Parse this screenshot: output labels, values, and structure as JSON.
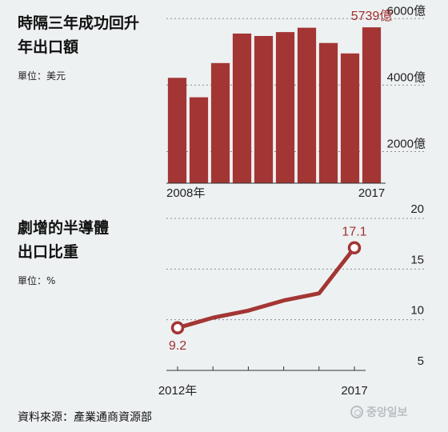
{
  "chart1": {
    "title_lines": [
      "時隔三年成功回升",
      "年出口額"
    ],
    "unit": "單位：美元"
  },
  "chart2": {
    "title_lines": [
      "劇增的半導體",
      "出口比重"
    ],
    "unit": "單位：%"
  },
  "source": "資料來源：產業通商資源部",
  "logo_text": "중앙일보",
  "colors": {
    "bar": "#a33634",
    "line": "#a33634",
    "background": "#eef1f2"
  },
  "chart_data": [
    {
      "type": "bar",
      "categories": [
        "2008",
        "2009",
        "2010",
        "2011",
        "2012",
        "2013",
        "2014",
        "2015",
        "2016",
        "2017"
      ],
      "category_labels": [
        "2008年",
        "",
        "",
        "",
        "",
        "",
        "",
        "",
        "",
        "2017"
      ],
      "values": [
        4220,
        3635,
        4664,
        5552,
        5479,
        5596,
        5727,
        5268,
        4954,
        5739
      ],
      "value_labels": [
        "",
        "",
        "",
        "",
        "",
        "",
        "",
        "",
        "",
        "5739億"
      ],
      "y_ticks": [
        2000,
        4000,
        6000
      ],
      "y_tick_labels": [
        "2000億",
        "4000億",
        "6000億"
      ],
      "ylim": [
        1050,
        6200
      ],
      "grid": true
    },
    {
      "type": "line",
      "x": [
        "2012",
        "2013",
        "2014",
        "2015",
        "2016",
        "2017"
      ],
      "x_tick_labels": [
        "2012年",
        "",
        "",
        "",
        "",
        "2017"
      ],
      "values": [
        9.2,
        10.2,
        10.9,
        11.9,
        12.6,
        17.1
      ],
      "value_labels": [
        "9.2",
        "",
        "",
        "",
        "",
        "17.1"
      ],
      "y_ticks": [
        5,
        10,
        15,
        20
      ],
      "y_tick_labels": [
        "5",
        "10",
        "15",
        "20"
      ],
      "ylim": [
        5,
        20
      ],
      "grid": true
    }
  ]
}
